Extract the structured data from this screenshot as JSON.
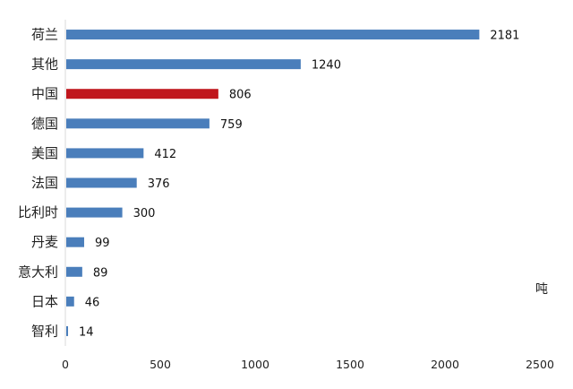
{
  "chart_data": {
    "type": "bar",
    "orientation": "horizontal",
    "categories": [
      "荷兰",
      "其他",
      "中国",
      "德国",
      "美国",
      "法国",
      "比利时",
      "丹麦",
      "意大利",
      "日本",
      "智利"
    ],
    "values": [
      2181,
      1240,
      806,
      759,
      412,
      376,
      300,
      99,
      89,
      46,
      14
    ],
    "value_labels": [
      "2181",
      "1240",
      "806",
      "759",
      "412",
      "376",
      "300",
      "99",
      "89",
      "46",
      "14"
    ],
    "highlight_category": "中国",
    "colors": {
      "default": "#4a7ebb",
      "highlight": "#c0161c",
      "axis": "#d9d9d9"
    },
    "xlim": [
      0,
      2500
    ],
    "xticks": [
      "0",
      "500",
      "1000",
      "1500",
      "2000",
      "2500"
    ],
    "unit": "吨",
    "grid": false,
    "legend": "none"
  }
}
